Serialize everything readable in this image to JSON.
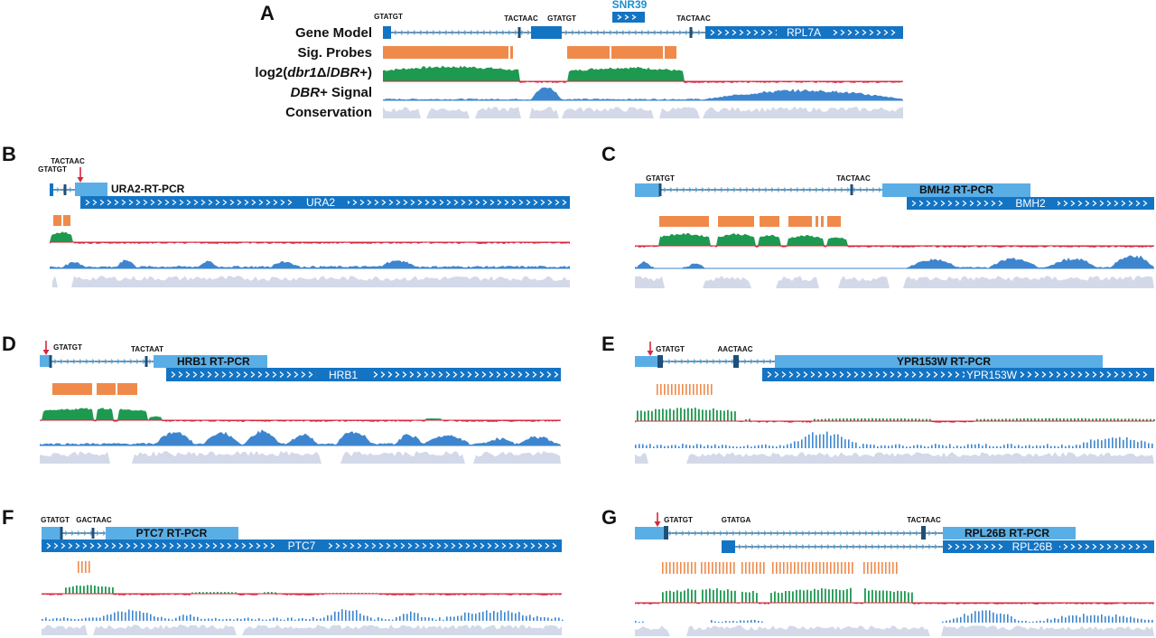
{
  "panels": {
    "A": {
      "label": "A",
      "track_labels": [
        {
          "parts": [
            {
              "t": "Gene Model"
            }
          ]
        },
        {
          "parts": [
            {
              "t": "Sig. Probes"
            }
          ]
        },
        {
          "parts": [
            {
              "t": "log2("
            },
            {
              "t": "dbr1",
              "i": true
            },
            {
              "t": "Δ/"
            },
            {
              "t": "DBR",
              "i": true
            },
            {
              "t": "+)"
            }
          ]
        },
        {
          "parts": [
            {
              "t": "DBR",
              "i": true
            },
            {
              "t": "+ Signal"
            }
          ]
        },
        {
          "parts": [
            {
              "t": "Conservation"
            }
          ]
        }
      ],
      "motifs": [
        "GTATGT",
        "TACTAAC",
        "GTATGT",
        "TACTAAC"
      ],
      "genes": [
        "SNR39",
        "RPL7A"
      ]
    },
    "B": {
      "label": "B",
      "motifs": [
        "GTATGT",
        "TACTAAC"
      ],
      "rtpcr": "URA2-RT-PCR",
      "gene": "URA2"
    },
    "C": {
      "label": "C",
      "motifs": [
        "GTATGT",
        "TACTAAC"
      ],
      "rtpcr": "BMH2 RT-PCR",
      "gene": "BMH2"
    },
    "D": {
      "label": "D",
      "motifs": [
        "GTATGT",
        "TACTAAT"
      ],
      "rtpcr": "HRB1 RT-PCR",
      "gene": "HRB1"
    },
    "E": {
      "label": "E",
      "motifs": [
        "GTATGT",
        "AACTAAC"
      ],
      "rtpcr": "YPR153W RT-PCR",
      "gene": "YPR153W"
    },
    "F": {
      "label": "F",
      "motifs": [
        "GTATGT",
        "GACTAAC"
      ],
      "rtpcr": "PTC7 RT-PCR",
      "gene": "PTC7"
    },
    "G": {
      "label": "G",
      "motifs": [
        "GTATGT",
        "GTATGA",
        "TACTAAC"
      ],
      "rtpcr": "RPL26B RT-PCR",
      "gene": "RPL26B"
    }
  },
  "colors": {
    "gene": "#1474c4",
    "gene_light": "#5aaee6",
    "intron": "#1f4f78",
    "probe": "#f08a4b",
    "log2_pos": "#1e9950",
    "log2_neg": "#d8263c",
    "signal": "#3d86cf",
    "conservation": "#d3d9e8",
    "arrow": "#d8263c",
    "snr": "#1a8fd1"
  }
}
